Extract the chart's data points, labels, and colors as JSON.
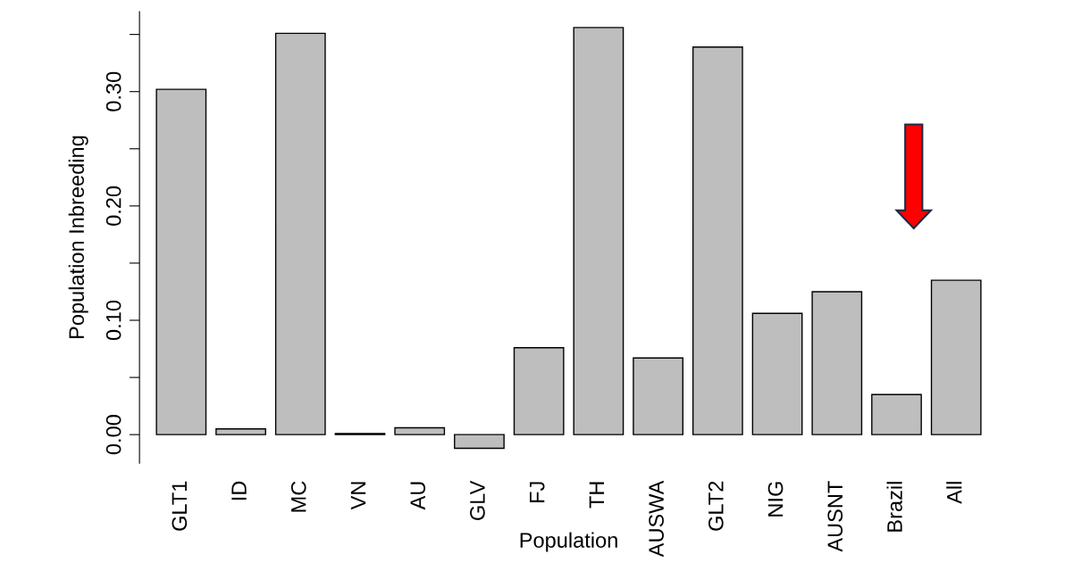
{
  "chart_data": {
    "type": "bar",
    "xlabel": "Population",
    "ylabel": "Population Inbreeding",
    "categories": [
      "GLT1",
      "ID",
      "MC",
      "VN",
      "AU",
      "GLV",
      "FJ",
      "TH",
      "AUSWA",
      "GLT2",
      "NIG",
      "AUSNT",
      "Brazil",
      "All"
    ],
    "values": [
      0.302,
      0.005,
      0.351,
      0.001,
      0.006,
      -0.012,
      0.076,
      0.356,
      0.067,
      0.339,
      0.106,
      0.125,
      0.035,
      0.135
    ],
    "color": "#bebebe",
    "ylim": [
      -0.025,
      0.37
    ],
    "yticks": [
      {
        "value": 0.0,
        "label": "0.00"
      },
      {
        "value": 0.05,
        "label": null
      },
      {
        "value": 0.1,
        "label": "0.10"
      },
      {
        "value": 0.15,
        "label": null
      },
      {
        "value": 0.2,
        "label": "0.20"
      },
      {
        "value": 0.25,
        "label": null
      },
      {
        "value": 0.3,
        "label": "0.30"
      },
      {
        "value": 0.35,
        "label": null
      }
    ],
    "grid": false,
    "legend": false
  }
}
